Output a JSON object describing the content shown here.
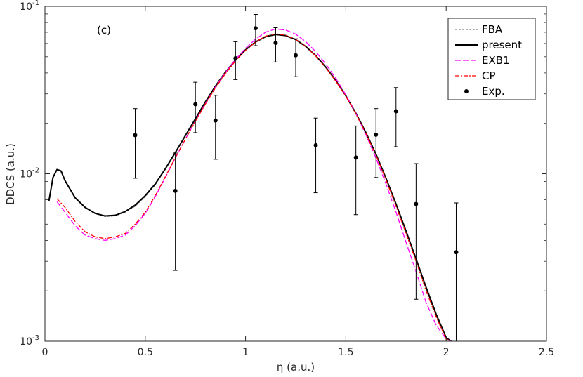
{
  "chart_data": {
    "type": "line",
    "panel_label": "(c)",
    "xlabel": "η (a.u.)",
    "ylabel": "DDCS (a.u.)",
    "xlim": [
      0,
      2.5
    ],
    "ylim": [
      0.001,
      0.1
    ],
    "yscale": "log",
    "grid": false,
    "legend_position": "top-right",
    "x_ticks": [
      {
        "value": 0,
        "label": "0"
      },
      {
        "value": 0.5,
        "label": "0.5"
      },
      {
        "value": 1,
        "label": "1"
      },
      {
        "value": 1.5,
        "label": "1.5"
      },
      {
        "value": 2,
        "label": "2"
      },
      {
        "value": 2.5,
        "label": "2.5"
      }
    ],
    "y_ticks": [
      {
        "value": 0.001,
        "base": "10",
        "exp": "-3"
      },
      {
        "value": 0.01,
        "base": "10",
        "exp": "-2"
      },
      {
        "value": 0.1,
        "base": "10",
        "exp": "-1"
      }
    ],
    "series": [
      {
        "name": "FBA",
        "color": "#666666",
        "dash": "3,2",
        "width": 1,
        "points": [
          [
            0.02,
            0.0069
          ],
          [
            0.04,
            0.0095
          ],
          [
            0.06,
            0.0106
          ],
          [
            0.08,
            0.0104
          ],
          [
            0.1,
            0.0091
          ],
          [
            0.15,
            0.0072
          ],
          [
            0.2,
            0.0063
          ],
          [
            0.25,
            0.0058
          ],
          [
            0.3,
            0.00555
          ],
          [
            0.35,
            0.0056
          ],
          [
            0.4,
            0.0059
          ],
          [
            0.45,
            0.0064
          ],
          [
            0.5,
            0.0073
          ],
          [
            0.55,
            0.0086
          ],
          [
            0.6,
            0.0106
          ],
          [
            0.65,
            0.0133
          ],
          [
            0.7,
            0.0168
          ],
          [
            0.75,
            0.0212
          ],
          [
            0.8,
            0.0268
          ],
          [
            0.85,
            0.0333
          ],
          [
            0.9,
            0.0404
          ],
          [
            0.95,
            0.0478
          ],
          [
            1.0,
            0.0549
          ],
          [
            1.05,
            0.0612
          ],
          [
            1.1,
            0.0657
          ],
          [
            1.15,
            0.0677
          ],
          [
            1.2,
            0.0667
          ],
          [
            1.25,
            0.0631
          ],
          [
            1.3,
            0.0574
          ],
          [
            1.35,
            0.0505
          ],
          [
            1.4,
            0.0431
          ],
          [
            1.45,
            0.0358
          ],
          [
            1.5,
            0.0291
          ],
          [
            1.55,
            0.0229
          ],
          [
            1.6,
            0.0175
          ],
          [
            1.65,
            0.013
          ],
          [
            1.7,
            0.0093
          ],
          [
            1.75,
            0.0065
          ],
          [
            1.8,
            0.0045
          ],
          [
            1.85,
            0.0031
          ],
          [
            1.9,
            0.0021
          ],
          [
            1.95,
            0.00145
          ],
          [
            2.0,
            0.00105
          ],
          [
            2.05,
            0.00095
          ]
        ]
      },
      {
        "name": "present",
        "color": "#000000",
        "dash": "",
        "width": 2,
        "points": [
          [
            0.02,
            0.0069
          ],
          [
            0.04,
            0.0095
          ],
          [
            0.06,
            0.0106
          ],
          [
            0.08,
            0.0104
          ],
          [
            0.1,
            0.0091
          ],
          [
            0.15,
            0.0072
          ],
          [
            0.2,
            0.0063
          ],
          [
            0.25,
            0.0058
          ],
          [
            0.3,
            0.0056
          ],
          [
            0.35,
            0.00565
          ],
          [
            0.4,
            0.00595
          ],
          [
            0.45,
            0.0065
          ],
          [
            0.5,
            0.0074
          ],
          [
            0.55,
            0.0087
          ],
          [
            0.6,
            0.0107
          ],
          [
            0.65,
            0.0134
          ],
          [
            0.7,
            0.0169
          ],
          [
            0.75,
            0.0213
          ],
          [
            0.8,
            0.0269
          ],
          [
            0.85,
            0.0334
          ],
          [
            0.9,
            0.0405
          ],
          [
            0.95,
            0.0479
          ],
          [
            1.0,
            0.055
          ],
          [
            1.05,
            0.0613
          ],
          [
            1.1,
            0.0659
          ],
          [
            1.15,
            0.0679
          ],
          [
            1.2,
            0.0669
          ],
          [
            1.25,
            0.0633
          ],
          [
            1.3,
            0.0576
          ],
          [
            1.35,
            0.0507
          ],
          [
            1.4,
            0.0433
          ],
          [
            1.45,
            0.036
          ],
          [
            1.5,
            0.0292
          ],
          [
            1.55,
            0.023
          ],
          [
            1.6,
            0.0176
          ],
          [
            1.65,
            0.0131
          ],
          [
            1.7,
            0.0094
          ],
          [
            1.75,
            0.0066
          ],
          [
            1.8,
            0.00455
          ],
          [
            1.85,
            0.0031
          ],
          [
            1.9,
            0.0021
          ],
          [
            1.95,
            0.00145
          ],
          [
            2.0,
            0.00105
          ],
          [
            2.05,
            0.00095
          ]
        ]
      },
      {
        "name": "EXB1",
        "color": "#ff00ff",
        "dash": "8,3",
        "width": 1.3,
        "points": [
          [
            0.06,
            0.0068
          ],
          [
            0.1,
            0.0059
          ],
          [
            0.15,
            0.0049
          ],
          [
            0.2,
            0.0043
          ],
          [
            0.25,
            0.0041
          ],
          [
            0.3,
            0.004
          ],
          [
            0.35,
            0.0041
          ],
          [
            0.4,
            0.0043
          ],
          [
            0.45,
            0.0049
          ],
          [
            0.5,
            0.0058
          ],
          [
            0.55,
            0.0073
          ],
          [
            0.6,
            0.0095
          ],
          [
            0.65,
            0.0124
          ],
          [
            0.7,
            0.0161
          ],
          [
            0.75,
            0.0207
          ],
          [
            0.8,
            0.0263
          ],
          [
            0.85,
            0.033
          ],
          [
            0.9,
            0.0403
          ],
          [
            0.95,
            0.0481
          ],
          [
            1.0,
            0.0562
          ],
          [
            1.05,
            0.0637
          ],
          [
            1.1,
            0.0701
          ],
          [
            1.15,
            0.0733
          ],
          [
            1.2,
            0.0722
          ],
          [
            1.25,
            0.0682
          ],
          [
            1.3,
            0.0615
          ],
          [
            1.35,
            0.0536
          ],
          [
            1.4,
            0.0452
          ],
          [
            1.45,
            0.0371
          ],
          [
            1.5,
            0.0296
          ],
          [
            1.55,
            0.0229
          ],
          [
            1.6,
            0.0171
          ],
          [
            1.65,
            0.0124
          ],
          [
            1.7,
            0.0087
          ],
          [
            1.75,
            0.0059
          ],
          [
            1.8,
            0.0039
          ],
          [
            1.85,
            0.0026
          ],
          [
            1.9,
            0.0017
          ],
          [
            1.95,
            0.00125
          ],
          [
            2.0,
            0.00103
          ],
          [
            2.04,
            0.00098
          ]
        ]
      },
      {
        "name": "CP",
        "color": "#ff0000",
        "dash": "6,2,2,2",
        "width": 1.3,
        "points": [
          [
            0.06,
            0.0071
          ],
          [
            0.1,
            0.0063
          ],
          [
            0.15,
            0.0052
          ],
          [
            0.2,
            0.0045
          ],
          [
            0.25,
            0.0042
          ],
          [
            0.3,
            0.0041
          ],
          [
            0.35,
            0.0042
          ],
          [
            0.4,
            0.0044
          ],
          [
            0.45,
            0.005
          ],
          [
            0.5,
            0.0059
          ],
          [
            0.55,
            0.0074
          ],
          [
            0.6,
            0.0096
          ],
          [
            0.65,
            0.0125
          ],
          [
            0.7,
            0.0161
          ],
          [
            0.75,
            0.0206
          ],
          [
            0.8,
            0.0261
          ],
          [
            0.85,
            0.0326
          ],
          [
            0.9,
            0.0397
          ],
          [
            0.95,
            0.0472
          ],
          [
            1.0,
            0.0546
          ],
          [
            1.05,
            0.0612
          ],
          [
            1.1,
            0.0664
          ],
          [
            1.15,
            0.0686
          ],
          [
            1.2,
            0.0672
          ],
          [
            1.25,
            0.0634
          ],
          [
            1.3,
            0.0575
          ],
          [
            1.35,
            0.0505
          ],
          [
            1.4,
            0.043
          ],
          [
            1.45,
            0.0357
          ],
          [
            1.5,
            0.029
          ],
          [
            1.55,
            0.0228
          ],
          [
            1.6,
            0.0174
          ],
          [
            1.65,
            0.0129
          ],
          [
            1.7,
            0.0092
          ],
          [
            1.75,
            0.0064
          ],
          [
            1.8,
            0.0044
          ],
          [
            1.85,
            0.003
          ],
          [
            1.9,
            0.002
          ],
          [
            1.95,
            0.0014
          ],
          [
            2.0,
            0.00103
          ],
          [
            2.04,
            0.00097
          ]
        ]
      }
    ],
    "experiment": {
      "name": "Exp.",
      "color": "#000000",
      "points": [
        {
          "x": 0.45,
          "y": 0.017,
          "lo": 0.0094,
          "hi": 0.0245
        },
        {
          "x": 0.65,
          "y": 0.0079,
          "lo": 0.00265,
          "hi": 0.0133
        },
        {
          "x": 0.75,
          "y": 0.026,
          "lo": 0.0176,
          "hi": 0.0352
        },
        {
          "x": 0.85,
          "y": 0.0208,
          "lo": 0.0122,
          "hi": 0.0294
        },
        {
          "x": 0.95,
          "y": 0.049,
          "lo": 0.0365,
          "hi": 0.0615
        },
        {
          "x": 1.05,
          "y": 0.074,
          "lo": 0.0582,
          "hi": 0.0895
        },
        {
          "x": 1.15,
          "y": 0.0605,
          "lo": 0.0465,
          "hi": 0.0745
        },
        {
          "x": 1.25,
          "y": 0.051,
          "lo": 0.038,
          "hi": 0.064
        },
        {
          "x": 1.35,
          "y": 0.0148,
          "lo": 0.0077,
          "hi": 0.0215
        },
        {
          "x": 1.55,
          "y": 0.0125,
          "lo": 0.0057,
          "hi": 0.0193
        },
        {
          "x": 1.65,
          "y": 0.0171,
          "lo": 0.0095,
          "hi": 0.0245
        },
        {
          "x": 1.75,
          "y": 0.0236,
          "lo": 0.0145,
          "hi": 0.0327
        },
        {
          "x": 1.85,
          "y": 0.0066,
          "lo": 0.00178,
          "hi": 0.0115
        },
        {
          "x": 2.05,
          "y": 0.0034,
          "lo": 0.001,
          "hi": 0.0067
        }
      ]
    }
  }
}
